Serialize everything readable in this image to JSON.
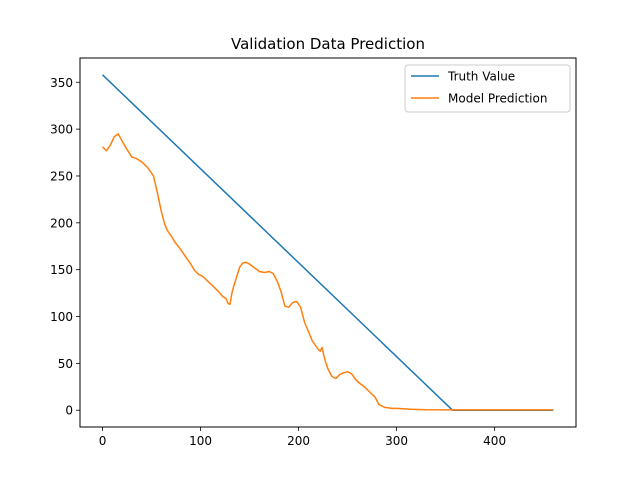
{
  "chart_data": {
    "type": "line",
    "title": "Validation Data Prediction",
    "xlabel": "",
    "ylabel": "",
    "xlim": [
      -23,
      483
    ],
    "ylim": [
      -17.9,
      375.9
    ],
    "xticks": [
      0,
      100,
      200,
      300,
      400
    ],
    "yticks": [
      0,
      50,
      100,
      150,
      200,
      250,
      300,
      350
    ],
    "grid": false,
    "legend": "top-right",
    "series": [
      {
        "name": "Truth Value",
        "color": "#1f77b4",
        "x": [
          0,
          357,
          460
        ],
        "y": [
          358,
          0,
          0
        ]
      },
      {
        "name": "Model Prediction",
        "color": "#ff7f0e",
        "x": [
          0,
          4,
          8,
          12,
          16,
          20,
          25,
          30,
          34,
          40,
          46,
          52,
          56,
          60,
          63,
          66,
          70,
          74,
          78,
          82,
          86,
          90,
          94,
          98,
          102,
          106,
          110,
          114,
          118,
          122,
          126,
          128,
          130,
          132,
          134,
          137,
          140,
          143,
          146,
          150,
          155,
          160,
          165,
          170,
          174,
          178,
          182,
          186,
          190,
          194,
          198,
          202,
          206,
          210,
          214,
          218,
          220,
          222,
          224,
          226,
          228,
          230,
          234,
          238,
          242,
          246,
          250,
          254,
          258,
          262,
          266,
          270,
          274,
          278,
          282,
          288,
          295,
          300,
          306,
          315,
          330,
          350,
          380,
          420,
          460
        ],
        "y": [
          281,
          277,
          283,
          292,
          295,
          287,
          278,
          270,
          269,
          265,
          259,
          250,
          232,
          212,
          200,
          192,
          186,
          179,
          174,
          168,
          162,
          156,
          149,
          145,
          143,
          139,
          135,
          131,
          127,
          122,
          119,
          114,
          113,
          125,
          133,
          143,
          153,
          157,
          158,
          156,
          152,
          148,
          147,
          148,
          146,
          138,
          127,
          111,
          110,
          115,
          116,
          110,
          94,
          84,
          74,
          68,
          65,
          63,
          67,
          57,
          50,
          44,
          36,
          34,
          38,
          40,
          41,
          39,
          33,
          29,
          26,
          22,
          18,
          14,
          6,
          3,
          2,
          2,
          1.5,
          1,
          0.5,
          0.3,
          0.3,
          0.3,
          0.3
        ]
      }
    ]
  }
}
